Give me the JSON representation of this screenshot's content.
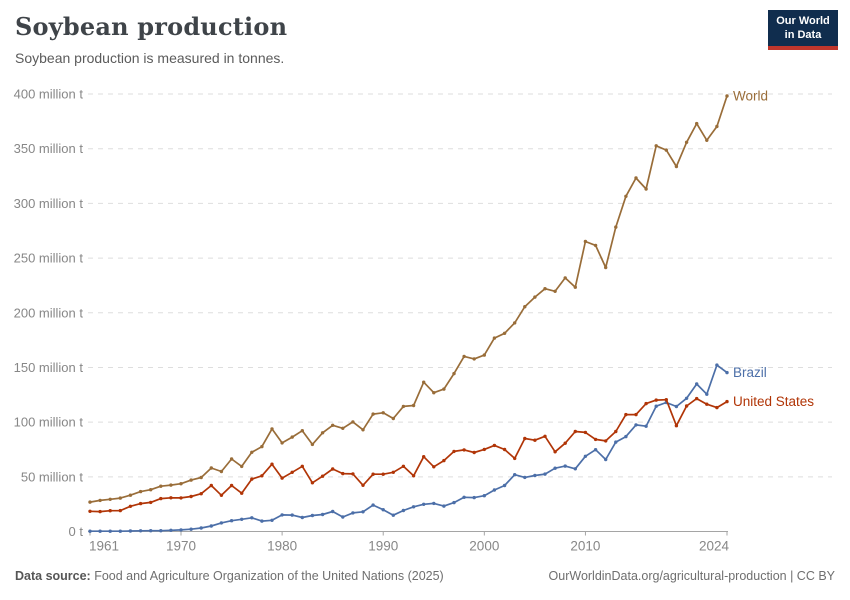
{
  "header": {
    "title": "Soybean production",
    "subtitle": "Soybean production is measured in tonnes."
  },
  "logo": {
    "line1": "Our World",
    "line2": "in Data",
    "bg_color": "#102d4e",
    "accent_color": "#c0362c"
  },
  "chart_data": {
    "type": "line",
    "title": "Soybean production",
    "ylabel": "",
    "xlabel": "",
    "unit": "tonnes",
    "grid": "horizontal dashed",
    "legend_position": "end-of-line labels",
    "ylim": [
      0,
      400
    ],
    "yticks": [
      {
        "value": 0,
        "label": "0 t"
      },
      {
        "value": 50,
        "label": "50 million t"
      },
      {
        "value": 100,
        "label": "100 million t"
      },
      {
        "value": 150,
        "label": "150 million t"
      },
      {
        "value": 200,
        "label": "200 million t"
      },
      {
        "value": 250,
        "label": "250 million t"
      },
      {
        "value": 300,
        "label": "300 million t"
      },
      {
        "value": 350,
        "label": "350 million t"
      },
      {
        "value": 400,
        "label": "400 million t"
      }
    ],
    "xticks": [
      1961,
      1970,
      1980,
      1990,
      2000,
      2010,
      2024
    ],
    "x": [
      1961,
      1962,
      1963,
      1964,
      1965,
      1966,
      1967,
      1968,
      1969,
      1970,
      1971,
      1972,
      1973,
      1974,
      1975,
      1976,
      1977,
      1978,
      1979,
      1980,
      1981,
      1982,
      1983,
      1984,
      1985,
      1986,
      1987,
      1988,
      1989,
      1990,
      1991,
      1992,
      1993,
      1994,
      1995,
      1996,
      1997,
      1998,
      1999,
      2000,
      2001,
      2002,
      2003,
      2004,
      2005,
      2006,
      2007,
      2008,
      2009,
      2010,
      2011,
      2012,
      2013,
      2014,
      2015,
      2016,
      2017,
      2018,
      2019,
      2020,
      2021,
      2022,
      2023,
      2024
    ],
    "series": [
      {
        "name": "World",
        "color": "#996D39",
        "values": [
          26.9,
          28.4,
          29.4,
          30.5,
          33.2,
          36.5,
          38.2,
          41.4,
          42.4,
          43.7,
          47.0,
          49.4,
          58.1,
          54.9,
          66.3,
          59.5,
          72.4,
          77.6,
          93.8,
          81.0,
          86.3,
          92.2,
          79.6,
          90.2,
          97.1,
          94.4,
          100.2,
          93.0,
          107.3,
          108.5,
          103.3,
          114.4,
          115.2,
          136.5,
          126.9,
          130.2,
          144.4,
          160.1,
          157.8,
          161.3,
          176.8,
          181.2,
          190.7,
          205.5,
          214.3,
          222.0,
          219.6,
          231.9,
          223.4,
          265.1,
          261.6,
          241.4,
          278.3,
          306.5,
          323.2,
          313.1,
          352.6,
          348.7,
          333.7,
          355.8,
          372.9,
          357.7,
          370.3,
          398.2
        ]
      },
      {
        "name": "Brazil",
        "color": "#4C6FA8",
        "values": [
          0.3,
          0.3,
          0.3,
          0.3,
          0.5,
          0.6,
          0.7,
          0.7,
          1.1,
          1.5,
          2.1,
          3.2,
          5.0,
          7.9,
          9.9,
          11.2,
          12.5,
          9.5,
          10.2,
          15.2,
          15.0,
          12.8,
          14.6,
          15.5,
          18.3,
          13.3,
          17.0,
          18.0,
          24.1,
          19.9,
          14.9,
          19.2,
          22.6,
          24.9,
          25.7,
          23.2,
          26.4,
          31.3,
          31.0,
          32.7,
          37.9,
          42.1,
          51.9,
          49.5,
          51.2,
          52.5,
          57.9,
          59.8,
          57.3,
          68.8,
          74.8,
          65.8,
          81.7,
          86.8,
          97.5,
          96.3,
          114.6,
          117.9,
          114.3,
          121.8,
          134.9,
          125.5,
          152.1,
          145.3
        ]
      },
      {
        "name": "United States",
        "color": "#B13507",
        "values": [
          18.5,
          18.2,
          19.0,
          19.1,
          23.0,
          25.5,
          26.6,
          30.1,
          30.8,
          30.7,
          32.0,
          34.6,
          42.1,
          33.1,
          42.1,
          35.0,
          47.9,
          50.9,
          61.5,
          48.8,
          54.1,
          59.6,
          44.5,
          50.6,
          57.1,
          52.9,
          52.7,
          42.2,
          52.4,
          52.4,
          54.1,
          59.6,
          50.9,
          68.4,
          59.2,
          64.8,
          73.2,
          74.6,
          72.2,
          75.1,
          78.7,
          75.0,
          66.8,
          85.0,
          83.5,
          87.0,
          72.9,
          80.7,
          91.4,
          90.6,
          84.2,
          82.8,
          91.4,
          106.9,
          106.9,
          116.9,
          120.1,
          120.5,
          96.7,
          114.7,
          121.5,
          116.4,
          113.3,
          118.8
        ]
      }
    ]
  },
  "footer": {
    "source_label": "Data source:",
    "source_text": " Food and Agriculture Organization of the United Nations (2025)",
    "link": "OurWorldinData.org/agricultural-production | CC BY"
  }
}
